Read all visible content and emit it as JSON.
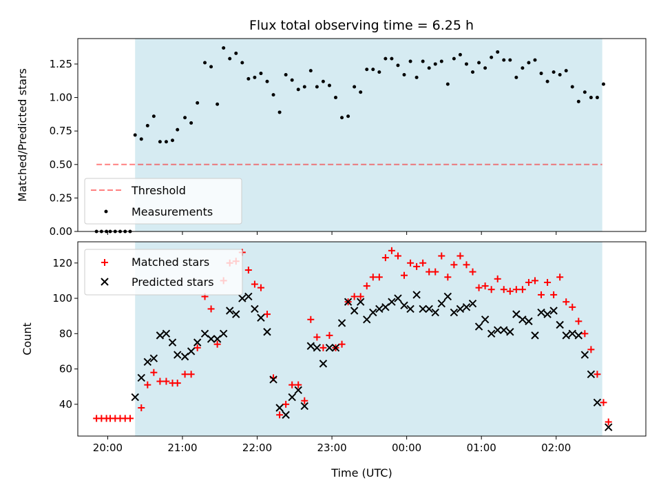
{
  "chart_data": [
    {
      "type": "scatter",
      "title": "Flux total observing time = 6.25 h",
      "ylabel": "Matched/Predicted stars",
      "xlabel": "",
      "xlim": [
        "19:36",
        "03:12"
      ],
      "ylim": [
        0,
        1.44
      ],
      "y_ticks": [
        "0.00",
        "0.25",
        "0.50",
        "0.75",
        "1.00",
        "1.25"
      ],
      "highlight_span": [
        "20:22",
        "02:37"
      ],
      "highlight_color": "#add8e6",
      "threshold": {
        "name": "Threshold",
        "value": 0.5,
        "x_range": [
          "19:51",
          "02:37"
        ],
        "color": "#ff0000"
      },
      "legend": {
        "placement": "lower-left",
        "items": [
          "Threshold",
          "Measurements"
        ]
      },
      "series": [
        {
          "name": "Measurements",
          "color": "#000000",
          "points": [
            [
              "19:51",
              0
            ],
            [
              "19:55",
              0
            ],
            [
              "19:59",
              0
            ],
            [
              "20:02",
              0
            ],
            [
              "20:06",
              0
            ],
            [
              "20:10",
              0
            ],
            [
              "20:14",
              0
            ],
            [
              "20:18",
              0
            ],
            [
              "20:22",
              0.72
            ],
            [
              "20:27",
              0.69
            ],
            [
              "20:32",
              0.79
            ],
            [
              "20:37",
              0.86
            ],
            [
              "20:42",
              0.67
            ],
            [
              "20:47",
              0.67
            ],
            [
              "20:52",
              0.68
            ],
            [
              "20:56",
              0.76
            ],
            [
              "21:02",
              0.85
            ],
            [
              "21:07",
              0.81
            ],
            [
              "21:12",
              0.96
            ],
            [
              "21:18",
              1.26
            ],
            [
              "21:23",
              1.23
            ],
            [
              "21:28",
              0.95
            ],
            [
              "21:33",
              1.37
            ],
            [
              "21:38",
              1.29
            ],
            [
              "21:43",
              1.33
            ],
            [
              "21:48",
              1.26
            ],
            [
              "21:53",
              1.14
            ],
            [
              "21:58",
              1.15
            ],
            [
              "22:03",
              1.18
            ],
            [
              "22:08",
              1.12
            ],
            [
              "22:13",
              1.02
            ],
            [
              "22:18",
              0.89
            ],
            [
              "22:23",
              1.17
            ],
            [
              "22:28",
              1.13
            ],
            [
              "22:33",
              1.06
            ],
            [
              "22:38",
              1.08
            ],
            [
              "22:43",
              1.2
            ],
            [
              "22:48",
              1.08
            ],
            [
              "22:53",
              1.12
            ],
            [
              "22:58",
              1.09
            ],
            [
              "23:03",
              1.0
            ],
            [
              "23:08",
              0.85
            ],
            [
              "23:13",
              0.86
            ],
            [
              "23:18",
              1.08
            ],
            [
              "23:23",
              1.04
            ],
            [
              "23:28",
              1.21
            ],
            [
              "23:33",
              1.21
            ],
            [
              "23:38",
              1.19
            ],
            [
              "23:43",
              1.29
            ],
            [
              "23:48",
              1.29
            ],
            [
              "23:53",
              1.24
            ],
            [
              "23:58",
              1.17
            ],
            [
              "00:03",
              1.27
            ],
            [
              "00:08",
              1.15
            ],
            [
              "00:13",
              1.27
            ],
            [
              "00:18",
              1.22
            ],
            [
              "00:23",
              1.25
            ],
            [
              "00:28",
              1.27
            ],
            [
              "00:33",
              1.1
            ],
            [
              "00:38",
              1.29
            ],
            [
              "00:43",
              1.32
            ],
            [
              "00:48",
              1.25
            ],
            [
              "00:53",
              1.19
            ],
            [
              "00:58",
              1.26
            ],
            [
              "01:03",
              1.22
            ],
            [
              "01:08",
              1.3
            ],
            [
              "01:13",
              1.34
            ],
            [
              "01:18",
              1.28
            ],
            [
              "01:23",
              1.28
            ],
            [
              "01:28",
              1.15
            ],
            [
              "01:33",
              1.22
            ],
            [
              "01:38",
              1.26
            ],
            [
              "01:43",
              1.28
            ],
            [
              "01:48",
              1.18
            ],
            [
              "01:53",
              1.12
            ],
            [
              "01:58",
              1.19
            ],
            [
              "02:03",
              1.17
            ],
            [
              "02:08",
              1.2
            ],
            [
              "02:13",
              1.08
            ],
            [
              "02:18",
              0.97
            ],
            [
              "02:23",
              1.04
            ],
            [
              "02:28",
              1.0
            ],
            [
              "02:33",
              1.0
            ],
            [
              "02:38",
              1.1
            ]
          ]
        }
      ]
    },
    {
      "type": "scatter",
      "title": "",
      "xlabel": "Time (UTC)",
      "ylabel": "Count",
      "xlim": [
        "19:36",
        "03:12"
      ],
      "ylim": [
        22,
        132
      ],
      "x_ticks": [
        "20:00",
        "21:00",
        "22:00",
        "23:00",
        "00:00",
        "01:00",
        "02:00"
      ],
      "y_ticks": [
        "40",
        "60",
        "80",
        "100",
        "120"
      ],
      "highlight_span": [
        "20:22",
        "02:37"
      ],
      "highlight_color": "#add8e6",
      "legend": {
        "placement": "upper-left",
        "items": [
          "Matched stars",
          "Predicted stars"
        ]
      },
      "series": [
        {
          "name": "Matched stars",
          "marker": "plus",
          "color": "#ff0000",
          "points": [
            [
              "19:51",
              32
            ],
            [
              "19:55",
              32
            ],
            [
              "19:59",
              32
            ],
            [
              "20:02",
              32
            ],
            [
              "20:06",
              32
            ],
            [
              "20:10",
              32
            ],
            [
              "20:14",
              32
            ],
            [
              "20:18",
              32
            ],
            [
              "20:27",
              38
            ],
            [
              "20:32",
              51
            ],
            [
              "20:37",
              58
            ],
            [
              "20:42",
              53
            ],
            [
              "20:47",
              53
            ],
            [
              "20:52",
              52
            ],
            [
              "20:56",
              52
            ],
            [
              "21:02",
              57
            ],
            [
              "21:07",
              57
            ],
            [
              "21:12",
              72
            ],
            [
              "21:18",
              101
            ],
            [
              "21:23",
              94
            ],
            [
              "21:28",
              74
            ],
            [
              "21:33",
              110
            ],
            [
              "21:38",
              120
            ],
            [
              "21:43",
              121
            ],
            [
              "21:48",
              126
            ],
            [
              "21:53",
              116
            ],
            [
              "21:58",
              108
            ],
            [
              "22:03",
              106
            ],
            [
              "22:08",
              91
            ],
            [
              "22:13",
              55
            ],
            [
              "22:18",
              34
            ],
            [
              "22:23",
              40
            ],
            [
              "22:28",
              51
            ],
            [
              "22:33",
              51
            ],
            [
              "22:38",
              42
            ],
            [
              "22:43",
              88
            ],
            [
              "22:48",
              78
            ],
            [
              "22:53",
              72
            ],
            [
              "22:58",
              79
            ],
            [
              "23:03",
              72
            ],
            [
              "23:08",
              74
            ],
            [
              "23:13",
              98
            ],
            [
              "23:18",
              101
            ],
            [
              "23:23",
              101
            ],
            [
              "23:28",
              107
            ],
            [
              "23:33",
              112
            ],
            [
              "23:38",
              112
            ],
            [
              "23:43",
              123
            ],
            [
              "23:48",
              127
            ],
            [
              "23:53",
              124
            ],
            [
              "23:58",
              113
            ],
            [
              "00:03",
              120
            ],
            [
              "00:08",
              118
            ],
            [
              "00:13",
              120
            ],
            [
              "00:18",
              115
            ],
            [
              "00:23",
              115
            ],
            [
              "00:28",
              124
            ],
            [
              "00:33",
              112
            ],
            [
              "00:38",
              119
            ],
            [
              "00:43",
              124
            ],
            [
              "00:48",
              119
            ],
            [
              "00:53",
              115
            ],
            [
              "00:58",
              106
            ],
            [
              "01:03",
              107
            ],
            [
              "01:08",
              105
            ],
            [
              "01:13",
              111
            ],
            [
              "01:18",
              105
            ],
            [
              "01:23",
              104
            ],
            [
              "01:28",
              105
            ],
            [
              "01:33",
              105
            ],
            [
              "01:38",
              109
            ],
            [
              "01:43",
              110
            ],
            [
              "01:48",
              102
            ],
            [
              "01:53",
              109
            ],
            [
              "01:58",
              102
            ],
            [
              "02:03",
              112
            ],
            [
              "02:08",
              98
            ],
            [
              "02:13",
              95
            ],
            [
              "02:18",
              87
            ],
            [
              "02:23",
              80
            ],
            [
              "02:28",
              71
            ],
            [
              "02:33",
              57
            ],
            [
              "02:38",
              41
            ],
            [
              "02:42",
              30
            ]
          ]
        },
        {
          "name": "Predicted stars",
          "marker": "x",
          "color": "#000000",
          "points": [
            [
              "20:22",
              44
            ],
            [
              "20:27",
              55
            ],
            [
              "20:32",
              64
            ],
            [
              "20:37",
              66
            ],
            [
              "20:42",
              79
            ],
            [
              "20:47",
              80
            ],
            [
              "20:52",
              75
            ],
            [
              "20:56",
              68
            ],
            [
              "21:02",
              67
            ],
            [
              "21:07",
              70
            ],
            [
              "21:12",
              75
            ],
            [
              "21:18",
              80
            ],
            [
              "21:23",
              77
            ],
            [
              "21:28",
              77
            ],
            [
              "21:33",
              80
            ],
            [
              "21:38",
              93
            ],
            [
              "21:43",
              91
            ],
            [
              "21:48",
              100
            ],
            [
              "21:53",
              101
            ],
            [
              "21:58",
              94
            ],
            [
              "22:03",
              89
            ],
            [
              "22:08",
              81
            ],
            [
              "22:13",
              54
            ],
            [
              "22:18",
              38
            ],
            [
              "22:23",
              34
            ],
            [
              "22:28",
              44
            ],
            [
              "22:33",
              48
            ],
            [
              "22:38",
              39
            ],
            [
              "22:43",
              73
            ],
            [
              "22:48",
              72
            ],
            [
              "22:53",
              63
            ],
            [
              "22:58",
              72
            ],
            [
              "23:03",
              72
            ],
            [
              "23:08",
              86
            ],
            [
              "23:13",
              98
            ],
            [
              "23:18",
              93
            ],
            [
              "23:23",
              98
            ],
            [
              "23:28",
              88
            ],
            [
              "23:33",
              92
            ],
            [
              "23:38",
              94
            ],
            [
              "23:43",
              95
            ],
            [
              "23:48",
              98
            ],
            [
              "23:53",
              100
            ],
            [
              "23:58",
              96
            ],
            [
              "00:03",
              94
            ],
            [
              "00:08",
              102
            ],
            [
              "00:13",
              94
            ],
            [
              "00:18",
              94
            ],
            [
              "00:23",
              92
            ],
            [
              "00:28",
              97
            ],
            [
              "00:33",
              101
            ],
            [
              "00:38",
              92
            ],
            [
              "00:43",
              94
            ],
            [
              "00:48",
              95
            ],
            [
              "00:53",
              97
            ],
            [
              "00:58",
              84
            ],
            [
              "01:03",
              88
            ],
            [
              "01:08",
              80
            ],
            [
              "01:13",
              82
            ],
            [
              "01:18",
              82
            ],
            [
              "01:23",
              81
            ],
            [
              "01:28",
              91
            ],
            [
              "01:33",
              88
            ],
            [
              "01:38",
              87
            ],
            [
              "01:43",
              79
            ],
            [
              "01:48",
              92
            ],
            [
              "01:53",
              91
            ],
            [
              "01:58",
              93
            ],
            [
              "02:03",
              85
            ],
            [
              "02:08",
              79
            ],
            [
              "02:13",
              80
            ],
            [
              "02:18",
              79
            ],
            [
              "02:23",
              68
            ],
            [
              "02:28",
              57
            ],
            [
              "02:33",
              41
            ],
            [
              "02:42",
              27
            ]
          ]
        }
      ]
    }
  ]
}
